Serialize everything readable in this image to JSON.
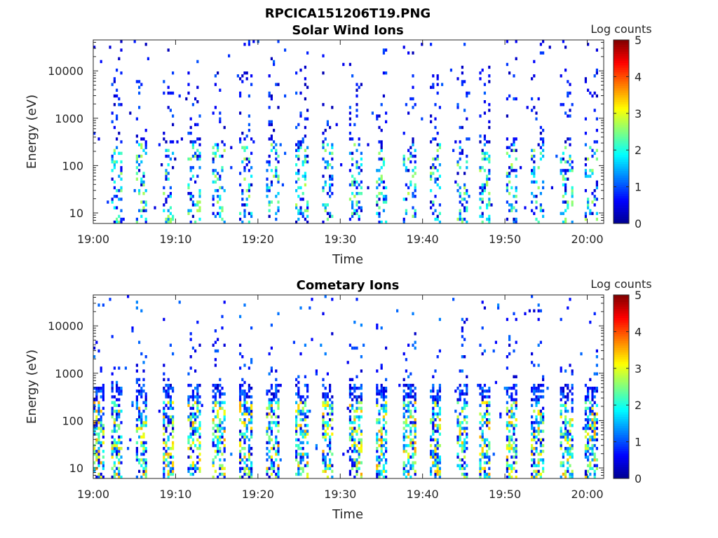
{
  "figure": {
    "title": "RPCICA151206T19.PNG"
  },
  "colors": {
    "colormap": [
      "#00008f",
      "#0000ff",
      "#0080ff",
      "#00ffff",
      "#80ff80",
      "#ffff00",
      "#ff8000",
      "#ff0000",
      "#800000"
    ],
    "axis": "#262626"
  },
  "chart_data": [
    {
      "type": "heatmap",
      "title": "Solar Wind Ions",
      "xlabel": "Time",
      "ylabel": "Energy (eV)",
      "x_ticks": [
        "19:00",
        "19:10",
        "19:20",
        "19:30",
        "19:40",
        "19:50",
        "20:00"
      ],
      "x_range": [
        "19:00",
        "20:02"
      ],
      "y_scale": "log",
      "y_ticks": [
        "10",
        "100",
        "1000",
        "10000"
      ],
      "y_range": [
        6,
        45000
      ],
      "colorbar": {
        "label": "Log counts",
        "range": [
          0,
          5
        ],
        "ticks": [
          "0",
          "1",
          "2",
          "3",
          "4",
          "5"
        ]
      },
      "bursts_minutes": [
        2.8,
        5.9,
        9.1,
        12.3,
        15.3,
        18.5,
        21.8,
        25.3,
        28.5,
        31.9,
        35.0,
        38.4,
        41.6,
        44.8,
        47.6,
        50.8,
        53.9,
        57.5,
        60.5
      ],
      "peak_log_counts": 2.6
    },
    {
      "type": "heatmap",
      "title": "Cometary Ions",
      "xlabel": "Time",
      "ylabel": "Energy (eV)",
      "x_ticks": [
        "19:00",
        "19:10",
        "19:20",
        "19:30",
        "19:40",
        "19:50",
        "20:00"
      ],
      "x_range": [
        "19:00",
        "20:02"
      ],
      "y_scale": "log",
      "y_ticks": [
        "10",
        "100",
        "1000",
        "10000"
      ],
      "y_range": [
        6,
        45000
      ],
      "colorbar": {
        "label": "Log counts",
        "range": [
          0,
          5
        ],
        "ticks": [
          "0",
          "1",
          "2",
          "3",
          "4",
          "5"
        ]
      },
      "bursts_minutes": [
        0.5,
        2.8,
        5.9,
        9.1,
        12.3,
        15.3,
        18.5,
        21.8,
        25.3,
        28.5,
        31.9,
        35.0,
        38.4,
        41.6,
        44.8,
        47.6,
        50.8,
        53.9,
        57.5,
        60.5
      ],
      "peak_log_counts": 3.3
    }
  ]
}
